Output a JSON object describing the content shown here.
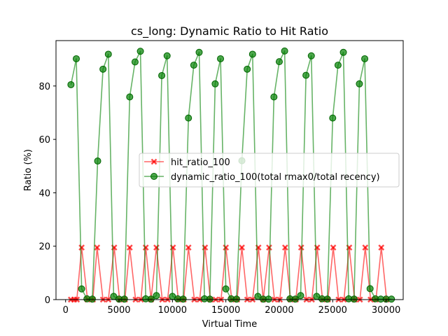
{
  "chart_data": {
    "type": "line",
    "title": "cs_long: Dynamic Ratio to Hit Ratio",
    "xlabel": "Virtual Time",
    "ylabel": "Ratio (%)",
    "xlim": [
      -900,
      31600
    ],
    "ylim": [
      0,
      97
    ],
    "xticks": [
      0,
      5000,
      10000,
      15000,
      20000,
      25000,
      30000
    ],
    "xtick_labels": [
      "0",
      "5000",
      "10000",
      "15000",
      "20000",
      "25000",
      "30000"
    ],
    "yticks": [
      0,
      20,
      40,
      60,
      80
    ],
    "ytick_labels": [
      "0",
      "20",
      "40",
      "60",
      "80"
    ],
    "grid": false,
    "legend_position": "center-right",
    "series": [
      {
        "name": "hit_ratio_100",
        "color": "#ff0000",
        "marker": "x",
        "x": [
          500,
          800,
          1050,
          1500,
          2050,
          2550,
          2950,
          3500,
          4000,
          4550,
          5050,
          5550,
          6000,
          6550,
          7050,
          7500,
          8000,
          8500,
          9050,
          9550,
          10050,
          10550,
          11050,
          11500,
          12050,
          12550,
          13050,
          13550,
          14050,
          14550,
          15000,
          15550,
          16050,
          16500,
          17000,
          17500,
          18050,
          18500,
          19050,
          19550,
          20050,
          20550,
          21050,
          21550,
          22050,
          22550,
          23050,
          23550,
          24050,
          24550,
          25050,
          25550,
          26050,
          26550,
          27050,
          27550,
          28050,
          28550,
          29050,
          29550,
          30050
        ],
        "y": [
          0,
          0,
          0,
          19.5,
          0,
          0,
          19.5,
          0,
          0,
          19.5,
          0,
          0,
          19.5,
          0,
          0,
          19.5,
          0,
          19.5,
          0,
          0,
          19.5,
          0,
          0,
          19.5,
          0,
          0,
          19.5,
          0,
          0,
          0,
          19.5,
          0,
          0,
          19.5,
          0,
          0,
          19.5,
          0,
          19.5,
          0,
          0,
          19.5,
          0,
          0,
          19.5,
          0,
          0,
          19.5,
          0,
          0,
          19.5,
          0,
          0,
          19.5,
          0,
          0,
          19.5,
          0,
          0,
          19.5,
          0
        ]
      },
      {
        "name": "dynamic_ratio_100(total rmax0/total recency)",
        "color": "#008000",
        "marker": "o",
        "x": [
          500,
          1000,
          1500,
          2000,
          2500,
          3000,
          3500,
          4000,
          4500,
          5000,
          5500,
          6000,
          6500,
          7000,
          7500,
          8000,
          8500,
          9000,
          9500,
          10000,
          10500,
          11000,
          11500,
          12000,
          12500,
          13000,
          13500,
          14000,
          14500,
          15000,
          15500,
          16000,
          16500,
          17000,
          17500,
          18000,
          18500,
          19000,
          19500,
          20000,
          20500,
          21000,
          21500,
          22000,
          22500,
          23000,
          23500,
          24000,
          24500,
          25000,
          25500,
          26000,
          26500,
          27000,
          27500,
          28000,
          28500,
          29000,
          29500,
          30000,
          30500
        ],
        "y": [
          80.5,
          90.2,
          4.0,
          0.3,
          0.2,
          51.9,
          86.3,
          91.9,
          1.2,
          0.2,
          0.2,
          75.9,
          89.0,
          93.0,
          0.3,
          0.2,
          1.5,
          83.9,
          91.3,
          1.2,
          0.3,
          0.2,
          68.0,
          87.8,
          92.6,
          0.3,
          0.2,
          80.8,
          90.2,
          4.0,
          0.3,
          0.2,
          52.0,
          86.3,
          91.9,
          1.2,
          0.2,
          0.2,
          75.9,
          89.1,
          93.1,
          0.3,
          0.2,
          1.5,
          84.0,
          91.3,
          1.2,
          0.3,
          0.2,
          68.0,
          87.8,
          92.6,
          0.3,
          0.2,
          80.8,
          90.2,
          4.1,
          0.3,
          0.2,
          0.2,
          0.2
        ]
      }
    ]
  }
}
